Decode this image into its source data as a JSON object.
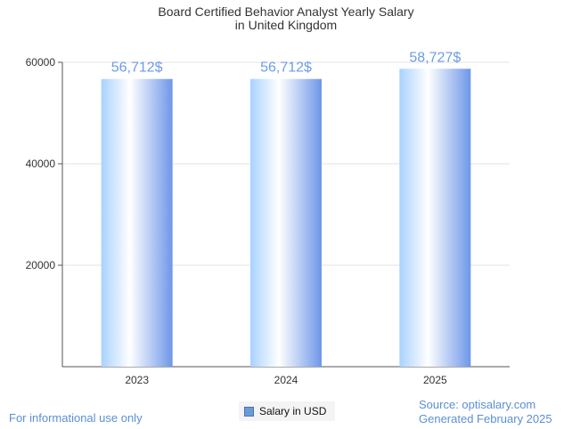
{
  "chart_data": {
    "type": "bar",
    "title_lines": [
      "Board Certified Behavior Analyst Yearly Salary",
      "in United Kingdom"
    ],
    "categories": [
      "2023",
      "2024",
      "2025"
    ],
    "series": [
      {
        "name": "Salary in USD",
        "values": [
          56712,
          56712,
          58727
        ]
      }
    ],
    "data_labels": [
      "56,712$",
      "56,712$",
      "58,727$"
    ],
    "ylim": [
      0,
      60000
    ],
    "yticks": [
      20000,
      40000,
      60000
    ],
    "ytick_labels": [
      "20000",
      "40000",
      "60000"
    ],
    "grid": true,
    "legend_position": "bottom-center",
    "colors": {
      "bar_light": "#e6f2ff",
      "bar_dark": "#6e97e8",
      "label": "#6b9be8"
    }
  },
  "footer": {
    "disclaimer": "For informational use only",
    "source": "Source: optisalary.com",
    "generated": "Generated February 2025"
  }
}
